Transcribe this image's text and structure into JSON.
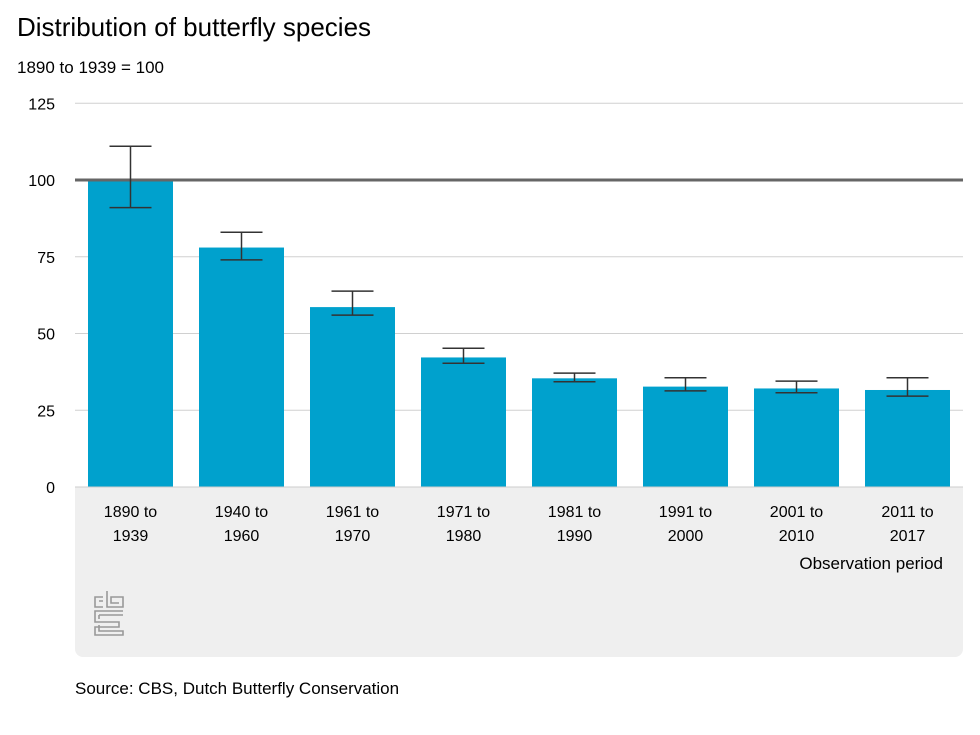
{
  "title": "Distribution of butterfly species",
  "subtitle": "1890 to 1939 = 100",
  "source": "Source: CBS, Dutch Butterfly Conservation",
  "logo_text": "cbs",
  "chart_data": {
    "type": "bar",
    "categories": [
      [
        "1890 to",
        "1939"
      ],
      [
        "1940 to",
        "1960"
      ],
      [
        "1961 to",
        "1970"
      ],
      [
        "1971 to",
        "1980"
      ],
      [
        "1981 to",
        "1990"
      ],
      [
        "1991 to",
        "2000"
      ],
      [
        "2001 to",
        "2010"
      ],
      [
        "2011 to",
        "2017"
      ]
    ],
    "values": [
      100,
      78,
      58.6,
      42.2,
      35.4,
      32.7,
      32.1,
      31.6
    ],
    "error_high": [
      111,
      83,
      63.8,
      45.2,
      37.1,
      35.6,
      34.5,
      35.6
    ],
    "error_low": [
      91,
      74,
      56,
      40.3,
      34.3,
      31.3,
      30.7,
      29.6
    ],
    "xlabel": "Observation period",
    "ylabel": "",
    "ylim": [
      0,
      125
    ],
    "yticks": [
      0,
      25,
      50,
      75,
      100,
      125
    ],
    "reference_line": 100,
    "grid": true,
    "colors": {
      "bar": "#00a1cd",
      "error": "#333333",
      "reference": "#666666",
      "grid": "#d0d0d0"
    }
  }
}
